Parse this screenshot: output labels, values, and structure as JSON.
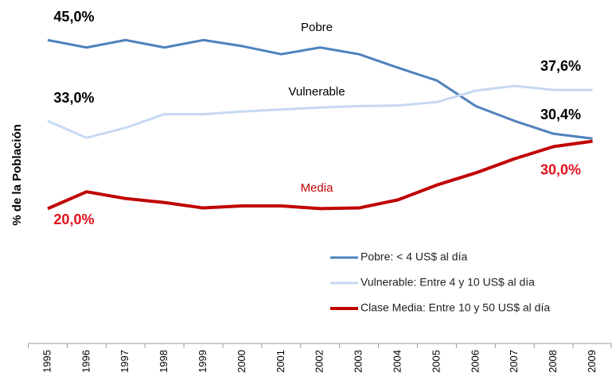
{
  "chart_data": {
    "type": "line",
    "y_label": "% de la Población",
    "categories": [
      "1995",
      "1996",
      "1997",
      "1998",
      "1999",
      "2000",
      "2001",
      "2002",
      "2003",
      "2004",
      "2005",
      "2006",
      "2007",
      "2008",
      "2009"
    ],
    "ylim": [
      0,
      50
    ],
    "annotations": [
      "Pobre",
      "Vulnerable",
      "Media"
    ],
    "series": [
      {
        "name": "Pobre: < 4 US$ al día",
        "color": "#4f81bd",
        "values": [
          45.0,
          43.9,
          45.0,
          43.9,
          45.0,
          44.1,
          42.9,
          43.9,
          42.9,
          40.9,
          39.0,
          35.2,
          33.0,
          31.1,
          30.4
        ],
        "value_labels": [
          "45,0%",
          null,
          null,
          null,
          null,
          null,
          null,
          null,
          null,
          null,
          null,
          null,
          null,
          null,
          "30,4%"
        ]
      },
      {
        "name": "Vulnerable: Entre 4 y 10 US$ al día",
        "color": "#c6d9f1",
        "values": [
          33.0,
          30.5,
          32.0,
          34.0,
          34.0,
          34.4,
          34.7,
          35.0,
          35.2,
          35.3,
          35.8,
          37.5,
          38.2,
          37.6,
          37.6
        ],
        "value_labels": [
          "33,0%",
          null,
          null,
          null,
          null,
          null,
          null,
          null,
          null,
          null,
          null,
          null,
          null,
          null,
          "37,6%"
        ]
      },
      {
        "name": "Clase Media: Entre 10 y 50 US$ al día",
        "color": "#c00000",
        "values": [
          20.0,
          22.5,
          21.5,
          20.9,
          20.1,
          20.4,
          20.4,
          20.0,
          20.1,
          21.3,
          23.5,
          25.3,
          27.4,
          29.2,
          30.0
        ],
        "value_labels": [
          "20,0%",
          null,
          null,
          null,
          null,
          null,
          null,
          null,
          null,
          null,
          null,
          null,
          null,
          null,
          "30,0%"
        ]
      }
    ]
  }
}
